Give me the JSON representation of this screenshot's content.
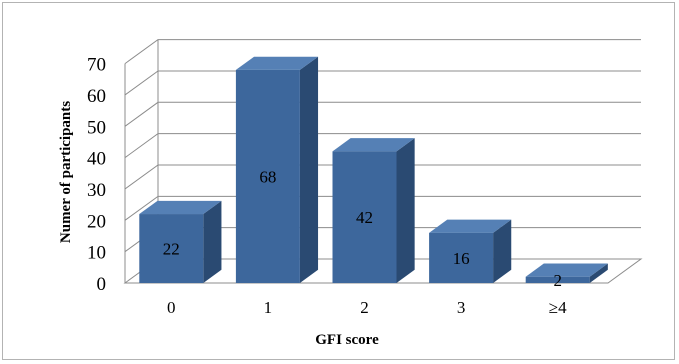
{
  "chart_data": {
    "type": "bar",
    "style": "3d-column",
    "categories": [
      "0",
      "1",
      "2",
      "3",
      "≥4"
    ],
    "values": [
      22,
      68,
      42,
      16,
      2
    ],
    "xlabel": "GFI score",
    "ylabel": "Numer of participants",
    "ylim": [
      0,
      70
    ],
    "yticks": [
      0,
      10,
      20,
      30,
      40,
      50,
      60,
      70
    ],
    "grid": true,
    "legend": "none",
    "data_labels": true,
    "colors": {
      "bar_front": "#3d679c",
      "bar_side": "#2a4a72",
      "bar_top": "#5580b5",
      "grid": "#8c8c8c",
      "text": "#000000"
    }
  }
}
